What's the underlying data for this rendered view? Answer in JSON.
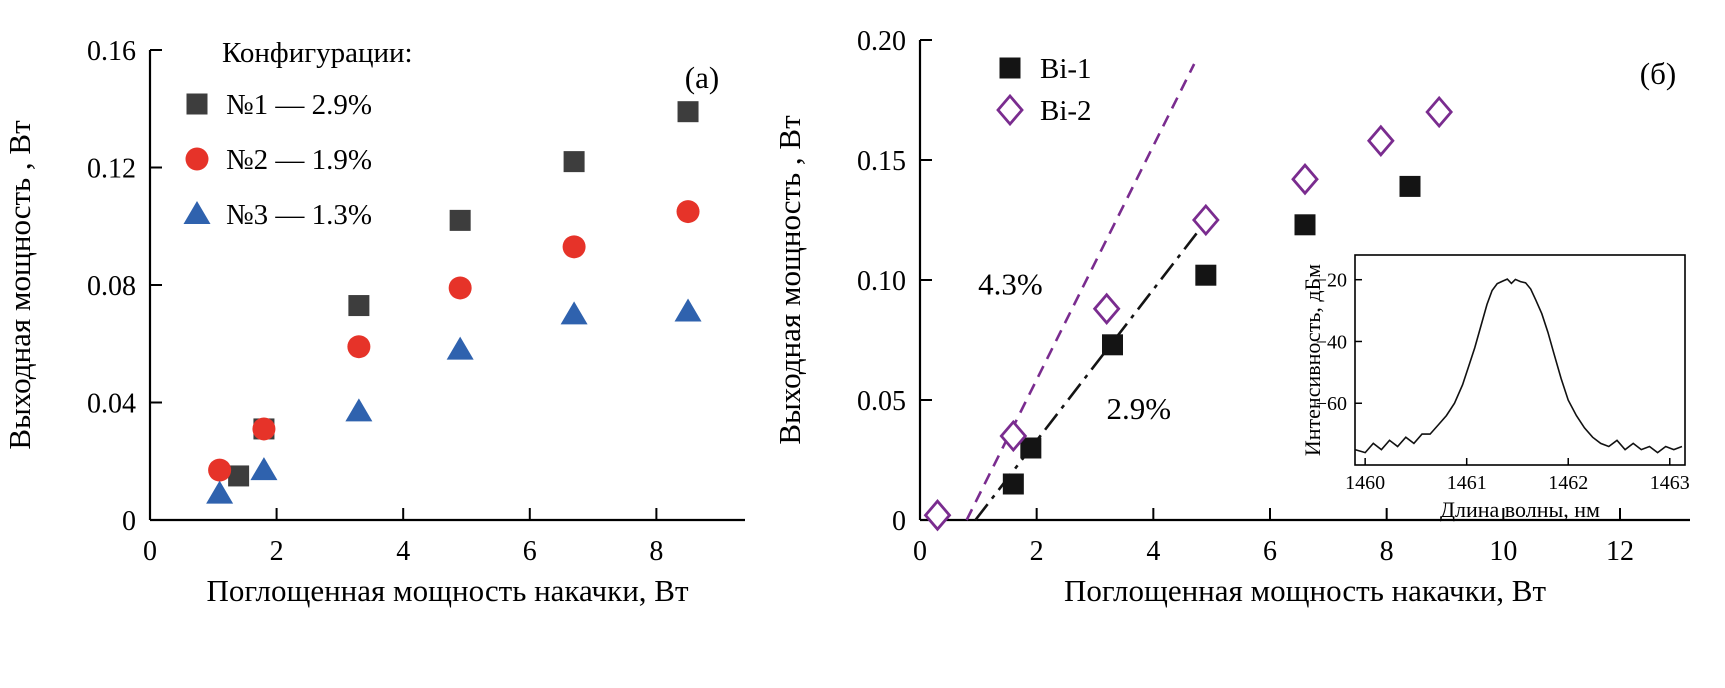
{
  "figure": {
    "background": "#ffffff"
  },
  "chart_data": [
    {
      "id": "panel-a",
      "type": "scatter",
      "panel_label": "(а)",
      "xlabel": "Поглощенная мощность накачки, Вт",
      "ylabel": "Выходная мощность , Вт",
      "xlim": [
        0,
        9.4
      ],
      "ylim": [
        0,
        0.16
      ],
      "xticks": [
        0,
        2,
        4,
        6,
        8
      ],
      "xtick_labels": [
        "0",
        "2",
        "4",
        "6",
        "8"
      ],
      "yticks": [
        0,
        0.04,
        0.08,
        0.12,
        0.16
      ],
      "ytick_labels": [
        "0",
        "0.04",
        "0.08",
        "0.12",
        "0.16"
      ],
      "legend": {
        "title": "Конфигурации:",
        "position": "top-left"
      },
      "series": [
        {
          "name": "№1 — 2.9%",
          "marker": "square",
          "color": "#3d3d3d",
          "points": [
            [
              1.4,
              0.015
            ],
            [
              1.8,
              0.031
            ],
            [
              3.3,
              0.073
            ],
            [
              4.9,
              0.102
            ],
            [
              6.7,
              0.122
            ],
            [
              8.5,
              0.139
            ]
          ]
        },
        {
          "name": "№2 — 1.9%",
          "marker": "circle",
          "color": "#e63329",
          "points": [
            [
              1.1,
              0.017
            ],
            [
              1.8,
              0.031
            ],
            [
              3.3,
              0.059
            ],
            [
              4.9,
              0.079
            ],
            [
              6.7,
              0.093
            ],
            [
              8.5,
              0.105
            ]
          ]
        },
        {
          "name": "№3 — 1.3%",
          "marker": "triangle",
          "color": "#2f62ae",
          "points": [
            [
              1.1,
              0.009
            ],
            [
              1.8,
              0.017
            ],
            [
              3.3,
              0.037
            ],
            [
              4.9,
              0.058
            ],
            [
              6.7,
              0.07
            ],
            [
              8.5,
              0.071
            ]
          ]
        }
      ]
    },
    {
      "id": "panel-b",
      "type": "scatter",
      "panel_label": "(б)",
      "xlabel": "Поглощенная мощность накачки, Вт",
      "ylabel": "Выходная мощность , Вт",
      "xlim": [
        0,
        13.2
      ],
      "ylim": [
        0,
        0.2
      ],
      "xticks": [
        0,
        2,
        4,
        6,
        8,
        10,
        12
      ],
      "xtick_labels": [
        "0",
        "2",
        "4",
        "6",
        "8",
        "10",
        "12"
      ],
      "yticks": [
        0,
        0.05,
        0.1,
        0.15,
        0.2
      ],
      "ytick_labels": [
        "0",
        "0.05",
        "0.10",
        "0.15",
        "0.20"
      ],
      "legend": {
        "position": "top-left"
      },
      "series": [
        {
          "name": "Bi-1",
          "marker": "square",
          "color": "#141414",
          "points": [
            [
              1.6,
              0.015
            ],
            [
              1.9,
              0.03
            ],
            [
              3.3,
              0.073
            ],
            [
              4.9,
              0.102
            ],
            [
              6.6,
              0.123
            ],
            [
              8.4,
              0.139
            ]
          ]
        },
        {
          "name": "Bi-2",
          "marker": "diamond-open",
          "color": "#7a2c8f",
          "points": [
            [
              0.3,
              0.002
            ],
            [
              1.6,
              0.035
            ],
            [
              3.2,
              0.088
            ],
            [
              4.9,
              0.125
            ],
            [
              6.6,
              0.142
            ],
            [
              7.9,
              0.158
            ],
            [
              8.9,
              0.17
            ]
          ]
        }
      ],
      "fit_lines": [
        {
          "label": "4.3%",
          "style": "dashed",
          "color": "#7a2c8f",
          "from": [
            0.8,
            0
          ],
          "to": [
            4.7,
            0.19
          ],
          "label_pos": [
            1.55,
            0.094
          ]
        },
        {
          "label": "2.9%",
          "style": "dashdot",
          "color": "#141414",
          "from": [
            0.95,
            0
          ],
          "to": [
            4.95,
            0.126
          ],
          "label_pos": [
            3.75,
            0.042
          ]
        }
      ],
      "inset": {
        "xlabel": "Длина волны, нм",
        "ylabel": "Интенсивность, дБм",
        "xlim": [
          1459.9,
          1463.15
        ],
        "ylim": [
          -80,
          -12
        ],
        "xticks": [
          1460,
          1461,
          1462,
          1463
        ],
        "xtick_labels": [
          "1460",
          "1461",
          "1462",
          "1463"
        ],
        "yticks": [
          -20,
          -40,
          -60
        ],
        "ytick_labels": [
          "−20",
          "−40",
          "−60"
        ],
        "curve_color": "#111111",
        "curve": [
          [
            1459.9,
            -75
          ],
          [
            1460.0,
            -76
          ],
          [
            1460.08,
            -73
          ],
          [
            1460.16,
            -75
          ],
          [
            1460.24,
            -72
          ],
          [
            1460.32,
            -74
          ],
          [
            1460.4,
            -71
          ],
          [
            1460.48,
            -73
          ],
          [
            1460.56,
            -70
          ],
          [
            1460.64,
            -70
          ],
          [
            1460.72,
            -67
          ],
          [
            1460.8,
            -64
          ],
          [
            1460.88,
            -60
          ],
          [
            1460.96,
            -54
          ],
          [
            1461.02,
            -48
          ],
          [
            1461.08,
            -42
          ],
          [
            1461.14,
            -35
          ],
          [
            1461.2,
            -28
          ],
          [
            1461.25,
            -23.5
          ],
          [
            1461.3,
            -21.3
          ],
          [
            1461.36,
            -20.4
          ],
          [
            1461.4,
            -19.8
          ],
          [
            1461.44,
            -21.2
          ],
          [
            1461.48,
            -19.9
          ],
          [
            1461.53,
            -20.6
          ],
          [
            1461.58,
            -21.0
          ],
          [
            1461.63,
            -23.0
          ],
          [
            1461.68,
            -26.5
          ],
          [
            1461.74,
            -31.0
          ],
          [
            1461.8,
            -37.0
          ],
          [
            1461.86,
            -44.0
          ],
          [
            1461.93,
            -52.0
          ],
          [
            1462.0,
            -59.0
          ],
          [
            1462.08,
            -64.0
          ],
          [
            1462.16,
            -68.0
          ],
          [
            1462.24,
            -71.0
          ],
          [
            1462.32,
            -73.0
          ],
          [
            1462.4,
            -74.0
          ],
          [
            1462.48,
            -72.0
          ],
          [
            1462.56,
            -75.0
          ],
          [
            1462.64,
            -73.0
          ],
          [
            1462.72,
            -75.0
          ],
          [
            1462.8,
            -74.0
          ],
          [
            1462.88,
            -76.0
          ],
          [
            1462.96,
            -74.0
          ],
          [
            1463.04,
            -75.0
          ],
          [
            1463.12,
            -74.0
          ]
        ]
      }
    }
  ]
}
